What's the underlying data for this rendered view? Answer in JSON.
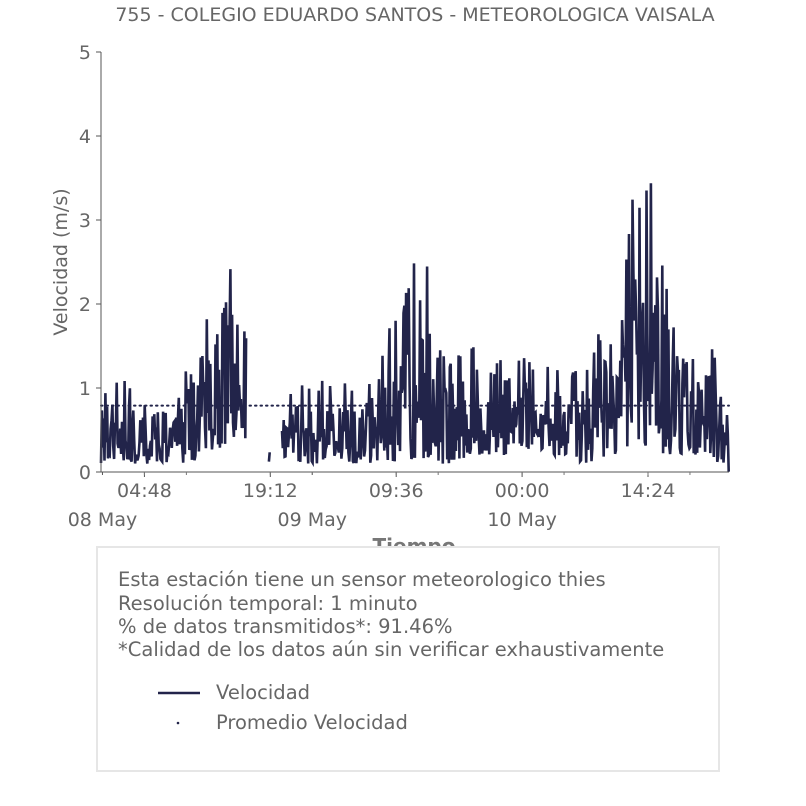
{
  "chart_data": {
    "type": "line",
    "title": "755 - COLEGIO EDUARDO SANTOS - METEOROLOGICA VAISALA",
    "xlabel": "Tiempo",
    "ylabel": "Velocidad (m/s)",
    "ylim": [
      0,
      5
    ],
    "yticks": [
      "0",
      "1",
      "2",
      "3",
      "4",
      "5"
    ],
    "xtick_times": [
      "04:48",
      "19:12",
      "09:36",
      "00:00",
      "14:24"
    ],
    "xtick_dates": [
      "08 May",
      "09 May",
      "10 May"
    ],
    "xlim": [
      "2019-05-07 23:50",
      "2019-05-10 23:40"
    ],
    "series": [
      {
        "name": "Velocidad",
        "color": "#22244a",
        "style": "solid",
        "envelope": [
          {
            "t": "2019-05-07 23:50",
            "min": 0.1,
            "max": 1.0
          },
          {
            "t": "2019-05-08 02:00",
            "min": 0.1,
            "max": 1.2
          },
          {
            "t": "2019-05-08 04:00",
            "min": 0.1,
            "max": 0.9
          },
          {
            "t": "2019-05-08 06:00",
            "min": 0.1,
            "max": 0.7
          },
          {
            "t": "2019-05-08 07:30",
            "min": 0.1,
            "max": 0.8
          },
          {
            "t": "2019-05-08 09:00",
            "min": 0.1,
            "max": 1.0
          },
          {
            "t": "2019-05-08 10:00",
            "min": 0.1,
            "max": 1.5
          },
          {
            "t": "2019-05-08 12:00",
            "min": 0.2,
            "max": 2.0
          },
          {
            "t": "2019-05-08 14:00",
            "min": 0.3,
            "max": 2.2
          },
          {
            "t": "2019-05-08 15:00",
            "min": 0.3,
            "max": 2.6
          },
          {
            "t": "2019-05-08 16:00",
            "min": 0.4,
            "max": 1.8
          },
          {
            "t": "2019-05-08 16:30",
            "min": null,
            "max": null
          },
          {
            "t": "2019-05-08 19:00",
            "min": 0.1,
            "max": 0.3
          },
          {
            "t": "2019-05-08 19:10",
            "min": null,
            "max": null
          },
          {
            "t": "2019-05-08 20:30",
            "min": 0.2,
            "max": 0.6
          },
          {
            "t": "2019-05-08 22:00",
            "min": 0.1,
            "max": 1.1
          },
          {
            "t": "2019-05-09 01:00",
            "min": 0.1,
            "max": 1.1
          },
          {
            "t": "2019-05-09 04:00",
            "min": 0.1,
            "max": 1.1
          },
          {
            "t": "2019-05-09 06:00",
            "min": 0.1,
            "max": 1.0
          },
          {
            "t": "2019-05-09 08:00",
            "min": 0.1,
            "max": 1.6
          },
          {
            "t": "2019-05-09 10:00",
            "min": 0.1,
            "max": 2.0
          },
          {
            "t": "2019-05-09 11:30",
            "min": 0.1,
            "max": 2.7
          },
          {
            "t": "2019-05-09 13:00",
            "min": 0.1,
            "max": 2.8
          },
          {
            "t": "2019-05-09 14:00",
            "min": 0.1,
            "max": 1.5
          },
          {
            "t": "2019-05-09 16:00",
            "min": 0.1,
            "max": 1.4
          },
          {
            "t": "2019-05-09 18:00",
            "min": 0.2,
            "max": 1.6
          },
          {
            "t": "2019-05-09 20:00",
            "min": 0.2,
            "max": 1.1
          },
          {
            "t": "2019-05-09 22:00",
            "min": 0.2,
            "max": 1.5
          },
          {
            "t": "2019-05-10 00:00",
            "min": 0.3,
            "max": 1.4
          },
          {
            "t": "2019-05-10 03:00",
            "min": 0.2,
            "max": 1.3
          },
          {
            "t": "2019-05-10 05:00",
            "min": 0.2,
            "max": 1.2
          },
          {
            "t": "2019-05-10 07:00",
            "min": 0.1,
            "max": 1.3
          },
          {
            "t": "2019-05-10 09:00",
            "min": 0.1,
            "max": 1.7
          },
          {
            "t": "2019-05-10 11:00",
            "min": 0.2,
            "max": 2.2
          },
          {
            "t": "2019-05-10 12:30",
            "min": 0.3,
            "max": 3.3
          },
          {
            "t": "2019-05-10 13:30",
            "min": 0.4,
            "max": 3.6
          },
          {
            "t": "2019-05-10 15:00",
            "min": 0.2,
            "max": 3.5
          },
          {
            "t": "2019-05-10 17:00",
            "min": 0.2,
            "max": 2.0
          },
          {
            "t": "2019-05-10 19:00",
            "min": 0.2,
            "max": 1.8
          },
          {
            "t": "2019-05-10 21:00",
            "min": 0.2,
            "max": 1.6
          },
          {
            "t": "2019-05-10 23:40",
            "min": 0.0,
            "max": 1.2
          }
        ]
      },
      {
        "name": "Promedio Velocidad",
        "color": "#22244a",
        "style": "dotted",
        "values": [
          {
            "t": "2019-05-07 23:50",
            "y": 0.79
          },
          {
            "t": "2019-05-10 23:40",
            "y": 0.79
          }
        ]
      }
    ],
    "legend": {
      "placement": "below",
      "entries": [
        "Velocidad",
        "Promedio Velocidad"
      ]
    },
    "grid": false
  },
  "info": {
    "notes": [
      "Esta estación tiene un sensor meteorologico thies",
      "Resolución temporal: 1 minuto",
      "% de datos transmitidos*: 91.46%",
      "*Calidad de los datos aún sin verificar exhaustivamente"
    ]
  }
}
